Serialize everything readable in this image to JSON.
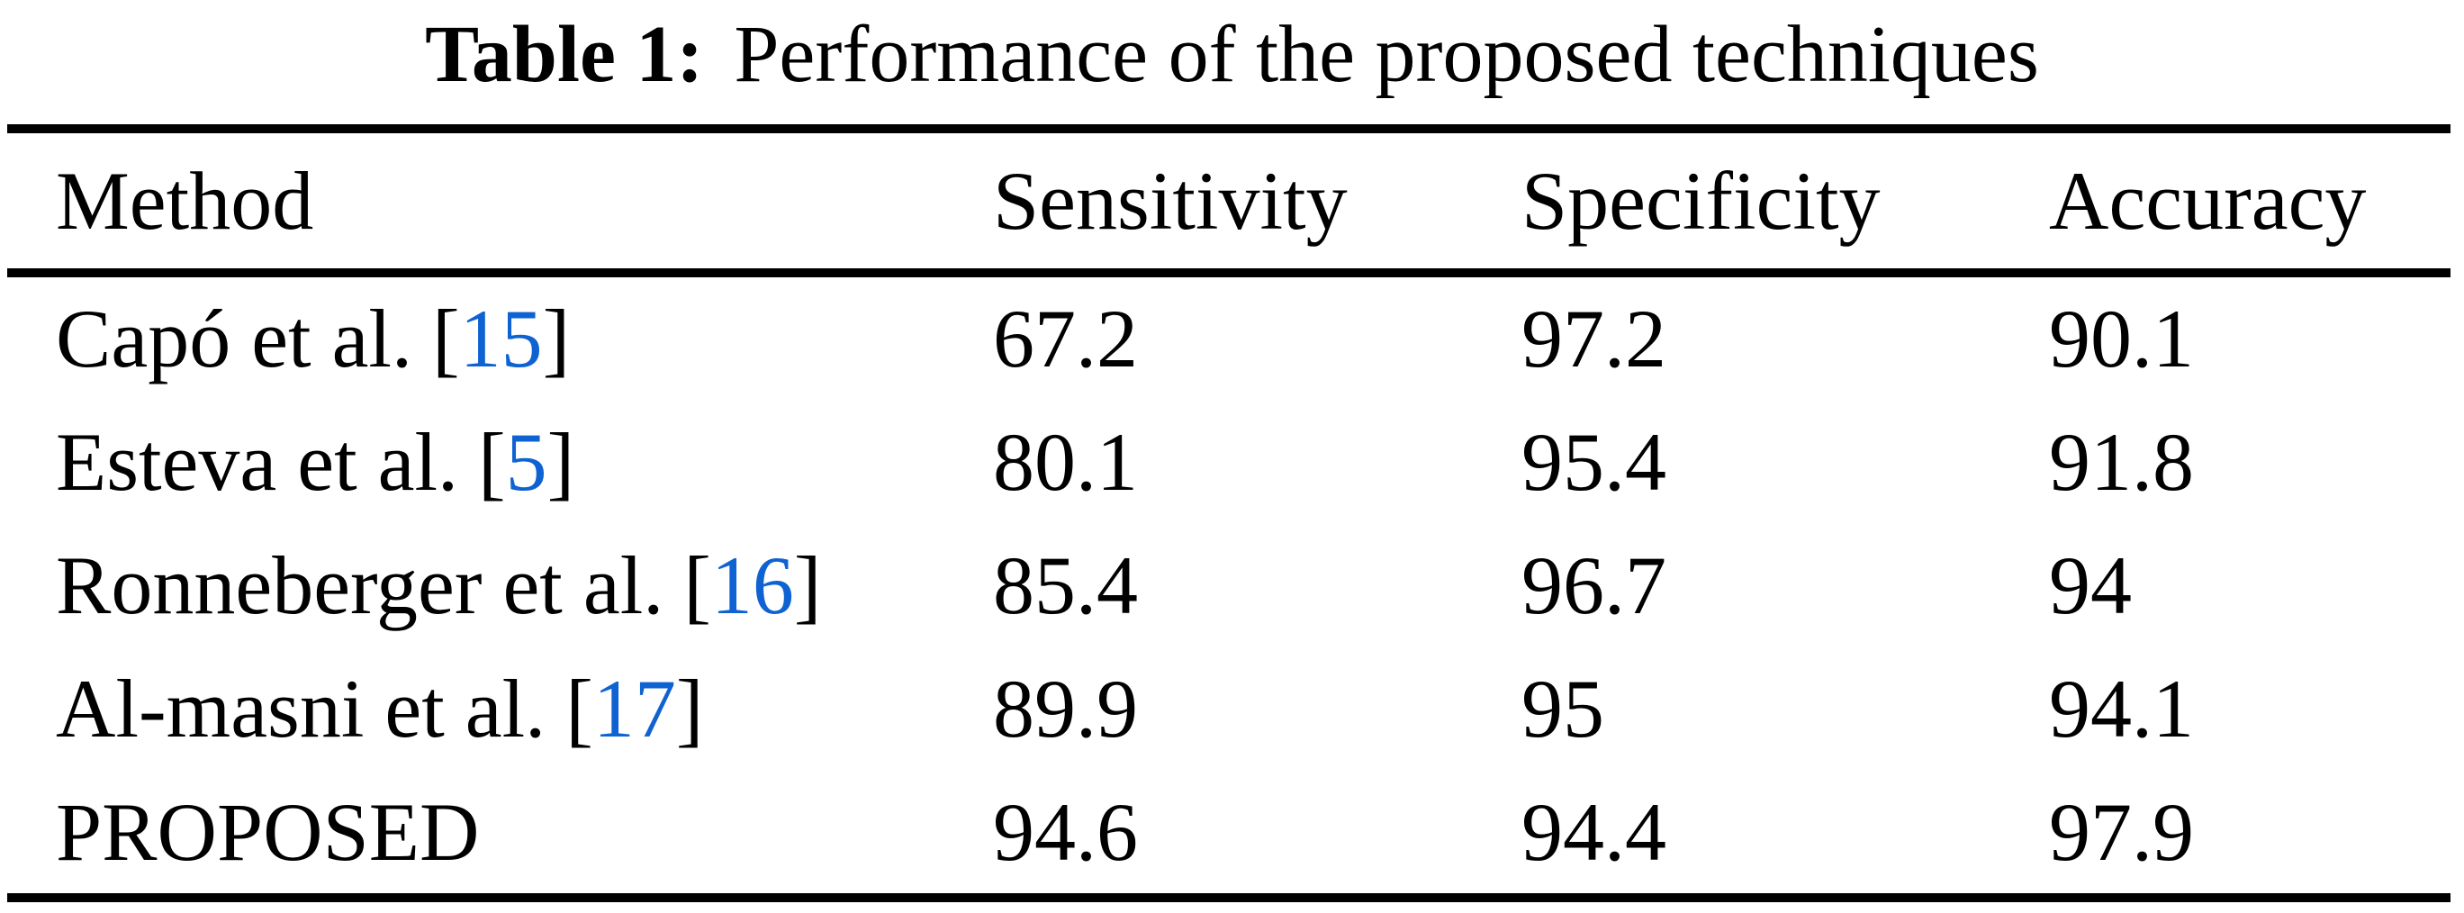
{
  "caption": {
    "label": "Table 1:",
    "text": "Performance of the proposed techniques"
  },
  "colors": {
    "background": "#ffffff",
    "text": "#000000",
    "rule": "#000000",
    "citation_link": "#0f62d2"
  },
  "table": {
    "headers": {
      "method": "Method",
      "sensitivity": "Sensitivity",
      "specificity": "Specificity",
      "accuracy": "Accuracy"
    },
    "rows": [
      {
        "method": "Capó et al.",
        "bracket_open": "[",
        "citation": "15",
        "bracket_close": "]",
        "sensitivity": "67.2",
        "specificity": "97.2",
        "accuracy": "90.1"
      },
      {
        "method": "Esteva et al.",
        "bracket_open": "[",
        "citation": "5",
        "bracket_close": "]",
        "sensitivity": "80.1",
        "specificity": "95.4",
        "accuracy": "91.8"
      },
      {
        "method": "Ronneberger et al.",
        "bracket_open": "[",
        "citation": "16",
        "bracket_close": "]",
        "sensitivity": "85.4",
        "specificity": "96.7",
        "accuracy": "94"
      },
      {
        "method": "Al-masni et al.",
        "bracket_open": "[",
        "citation": "17",
        "bracket_close": "]",
        "sensitivity": "89.9",
        "specificity": "95",
        "accuracy": "94.1"
      },
      {
        "method": "PROPOSED",
        "sensitivity": "94.6",
        "specificity": "94.4",
        "accuracy": "97.9"
      }
    ]
  },
  "chart_data": {
    "type": "table",
    "title": "Table 1: Performance of the proposed techniques",
    "columns": [
      "Method",
      "Sensitivity",
      "Specificity",
      "Accuracy"
    ],
    "rows": [
      [
        "Capó et al. [15]",
        67.2,
        97.2,
        90.1
      ],
      [
        "Esteva et al. [5]",
        80.1,
        95.4,
        91.8
      ],
      [
        "Ronneberger et al. [16]",
        85.4,
        96.7,
        94
      ],
      [
        "Al-masni et al. [17]",
        89.9,
        95,
        94.1
      ],
      [
        "PROPOSED",
        94.6,
        94.4,
        97.9
      ]
    ]
  }
}
